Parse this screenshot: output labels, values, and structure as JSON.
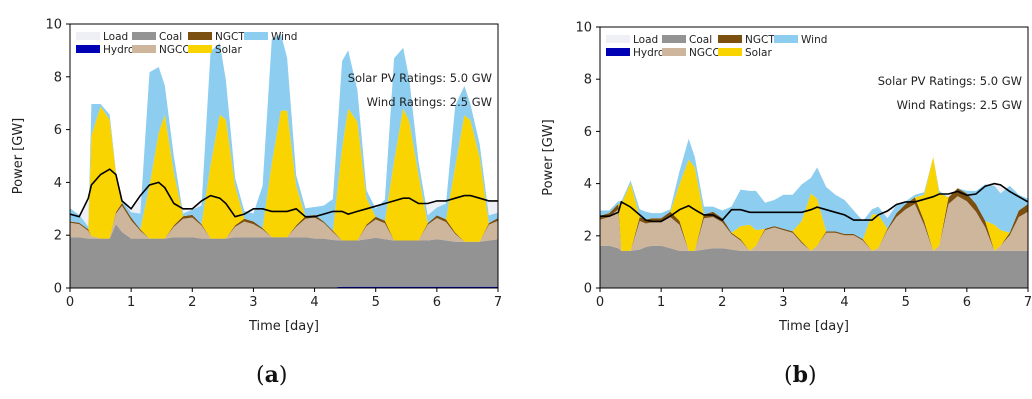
{
  "colors": {
    "Load": "#eef0f6",
    "Coal": "#939393",
    "NGCT": "#7a4f10",
    "Wind": "#8ccdf0",
    "Hydro": "#0000b5",
    "NGCC": "#cdb69c",
    "Solar": "#fad400",
    "load_line": "#000000"
  },
  "legend_entries": [
    "Load",
    "Coal",
    "NGCT",
    "Wind",
    "Hydro",
    "NGCC",
    "Solar"
  ],
  "chart_data": [
    {
      "type": "area",
      "panel_label": "a",
      "xlabel": "Time [day]",
      "ylabel": "Power [GW]",
      "xlim": [
        0,
        7
      ],
      "ylim": [
        0,
        10
      ],
      "xticks": [
        0,
        1,
        2,
        3,
        4,
        5,
        6,
        7
      ],
      "yticks": [
        0,
        2,
        4,
        6,
        8,
        10
      ],
      "annotations": [
        "Solar PV Ratings: 5.0 GW",
        "Wind Ratings: 2.5 GW"
      ],
      "legend_position": "top-left",
      "x": [
        0,
        0.15,
        0.3,
        0.35,
        0.5,
        0.65,
        0.75,
        0.85,
        1.0,
        1.15,
        1.3,
        1.45,
        1.55,
        1.7,
        1.85,
        2.0,
        2.15,
        2.3,
        2.45,
        2.55,
        2.7,
        2.85,
        3.0,
        3.15,
        3.3,
        3.45,
        3.55,
        3.7,
        3.85,
        4.0,
        4.15,
        4.3,
        4.45,
        4.55,
        4.7,
        4.85,
        5.0,
        5.15,
        5.3,
        5.45,
        5.55,
        5.7,
        5.85,
        6.0,
        6.15,
        6.3,
        6.45,
        6.55,
        6.7,
        6.85,
        7.0
      ],
      "series": [
        {
          "name": "Hydro",
          "values": [
            0.02,
            0.02,
            0.02,
            0.02,
            0.02,
            0.02,
            0.02,
            0.02,
            0.02,
            0.02,
            0.02,
            0.02,
            0.02,
            0.02,
            0.02,
            0.02,
            0.02,
            0.02,
            0.02,
            0.02,
            0.02,
            0.02,
            0.02,
            0.02,
            0.02,
            0.02,
            0.02,
            0.02,
            0.02,
            0.02,
            0.02,
            0.02,
            0.05,
            0.05,
            0.05,
            0.05,
            0.05,
            0.05,
            0.05,
            0.05,
            0.05,
            0.05,
            0.05,
            0.05,
            0.05,
            0.05,
            0.05,
            0.05,
            0.05,
            0.05,
            0.05
          ]
        },
        {
          "name": "Coal",
          "values": [
            1.9,
            1.9,
            1.85,
            1.85,
            1.85,
            1.85,
            2.4,
            2.1,
            1.85,
            1.85,
            1.85,
            1.85,
            1.85,
            1.9,
            1.9,
            1.9,
            1.85,
            1.85,
            1.85,
            1.85,
            1.9,
            1.9,
            1.9,
            1.9,
            1.9,
            1.9,
            1.9,
            1.9,
            1.9,
            1.85,
            1.85,
            1.8,
            1.75,
            1.75,
            1.75,
            1.8,
            1.85,
            1.8,
            1.75,
            1.75,
            1.75,
            1.75,
            1.75,
            1.8,
            1.75,
            1.7,
            1.7,
            1.7,
            1.7,
            1.75,
            1.8
          ]
        },
        {
          "name": "NGCC",
          "values": [
            0.55,
            0.5,
            0.3,
            0.1,
            0.0,
            0.0,
            0.4,
            1.0,
            0.7,
            0.3,
            0.0,
            0.0,
            0.0,
            0.4,
            0.7,
            0.75,
            0.5,
            0.0,
            0.0,
            0.0,
            0.4,
            0.6,
            0.5,
            0.3,
            0.0,
            0.0,
            0.0,
            0.4,
            0.7,
            0.8,
            0.6,
            0.3,
            0.0,
            0.0,
            0.0,
            0.5,
            0.7,
            0.6,
            0.0,
            0.0,
            0.0,
            0.0,
            0.6,
            0.8,
            0.7,
            0.3,
            0.0,
            0.0,
            0.0,
            0.6,
            0.7
          ]
        },
        {
          "name": "NGCT",
          "values": [
            0.05,
            0.05,
            0.05,
            0.0,
            0.0,
            0.0,
            0.05,
            0.1,
            0.1,
            0.05,
            0.0,
            0.0,
            0.0,
            0.05,
            0.1,
            0.1,
            0.05,
            0.0,
            0.0,
            0.0,
            0.05,
            0.1,
            0.1,
            0.05,
            0.0,
            0.0,
            0.0,
            0.05,
            0.1,
            0.1,
            0.05,
            0.05,
            0.0,
            0.0,
            0.0,
            0.05,
            0.1,
            0.1,
            0.0,
            0.0,
            0.0,
            0.0,
            0.05,
            0.1,
            0.1,
            0.05,
            0.0,
            0.0,
            0.0,
            0.05,
            0.1
          ]
        },
        {
          "name": "Solar",
          "values": [
            0,
            0,
            0,
            3.8,
            5.0,
            4.5,
            1.5,
            0,
            0,
            0,
            2.0,
            4.0,
            4.7,
            2.0,
            0,
            0,
            0,
            2.8,
            4.7,
            4.5,
            1.5,
            0,
            0,
            0,
            2.8,
            4.8,
            4.8,
            1.5,
            0,
            0,
            0,
            0,
            3.5,
            5.0,
            4.5,
            1.0,
            0,
            0,
            3.0,
            5.0,
            4.5,
            2.5,
            0,
            0,
            0,
            2.5,
            4.8,
            4.6,
            3.2,
            0,
            0
          ]
        },
        {
          "name": "Wind",
          "values": [
            0.5,
            0.3,
            0.1,
            1.2,
            0.1,
            0.2,
            0.05,
            0.1,
            0.2,
            0.6,
            4.3,
            2.5,
            1.1,
            0.6,
            0.1,
            0.2,
            0.7,
            4.3,
            2.7,
            1.5,
            0.3,
            0.3,
            0.3,
            1.6,
            4.7,
            2.9,
            2.0,
            0.4,
            0.3,
            0.3,
            0.6,
            1.2,
            3.3,
            2.2,
            1.2,
            0.3,
            0.3,
            0.8,
            3.9,
            2.3,
            1.6,
            0.5,
            0.3,
            0.3,
            0.6,
            2.3,
            1.1,
            0.6,
            0.5,
            0.3,
            0.2
          ]
        },
        {
          "name": "Load",
          "values": [
            2.8,
            2.7,
            3.4,
            3.9,
            4.3,
            4.5,
            4.3,
            3.3,
            3.0,
            3.5,
            3.9,
            4.0,
            3.8,
            3.2,
            3.0,
            3.0,
            3.3,
            3.5,
            3.4,
            3.2,
            2.7,
            2.8,
            3.0,
            3.0,
            2.9,
            2.9,
            2.9,
            3.0,
            2.7,
            2.7,
            2.8,
            2.9,
            2.9,
            2.8,
            2.9,
            3.0,
            3.1,
            3.2,
            3.3,
            3.4,
            3.4,
            3.2,
            3.2,
            3.3,
            3.3,
            3.4,
            3.5,
            3.5,
            3.4,
            3.3,
            3.3
          ]
        }
      ]
    },
    {
      "type": "area",
      "panel_label": "b",
      "xlabel": "Time [day]",
      "ylabel": "Power [GW]",
      "xlim": [
        0,
        7
      ],
      "ylim": [
        0,
        10
      ],
      "xticks": [
        0,
        1,
        2,
        3,
        4,
        5,
        6,
        7
      ],
      "yticks": [
        0,
        2,
        4,
        6,
        8,
        10
      ],
      "annotations": [
        "Solar PV Ratings: 5.0 GW",
        "Wind Ratings: 2.5 GW"
      ],
      "legend_position": "top-left",
      "x": [
        0,
        0.15,
        0.3,
        0.35,
        0.5,
        0.65,
        0.75,
        0.85,
        1.0,
        1.15,
        1.3,
        1.45,
        1.55,
        1.7,
        1.85,
        2.0,
        2.15,
        2.3,
        2.45,
        2.55,
        2.7,
        2.85,
        3.0,
        3.15,
        3.3,
        3.45,
        3.55,
        3.7,
        3.85,
        4.0,
        4.15,
        4.3,
        4.45,
        4.55,
        4.7,
        4.85,
        5.0,
        5.15,
        5.3,
        5.45,
        5.55,
        5.7,
        5.85,
        6.0,
        6.15,
        6.3,
        6.45,
        6.55,
        6.7,
        6.85,
        7.0
      ],
      "series": [
        {
          "name": "Hydro",
          "values": [
            0.02,
            0.02,
            0.02,
            0.02,
            0.02,
            0.02,
            0.02,
            0.02,
            0.02,
            0.02,
            0.02,
            0.02,
            0.02,
            0.02,
            0.02,
            0.02,
            0.02,
            0.02,
            0.02,
            0.02,
            0.02,
            0.02,
            0.02,
            0.02,
            0.02,
            0.02,
            0.02,
            0.02,
            0.02,
            0.02,
            0.02,
            0.02,
            0.02,
            0.02,
            0.02,
            0.02,
            0.02,
            0.02,
            0.02,
            0.02,
            0.02,
            0.02,
            0.02,
            0.02,
            0.02,
            0.02,
            0.02,
            0.02,
            0.02,
            0.02,
            0.02
          ]
        },
        {
          "name": "Coal",
          "values": [
            1.6,
            1.6,
            1.5,
            1.4,
            1.4,
            1.45,
            1.55,
            1.6,
            1.6,
            1.5,
            1.4,
            1.4,
            1.4,
            1.45,
            1.5,
            1.5,
            1.45,
            1.4,
            1.4,
            1.4,
            1.4,
            1.4,
            1.4,
            1.4,
            1.4,
            1.4,
            1.4,
            1.4,
            1.4,
            1.4,
            1.4,
            1.4,
            1.4,
            1.4,
            1.4,
            1.4,
            1.4,
            1.4,
            1.4,
            1.4,
            1.4,
            1.4,
            1.4,
            1.4,
            1.4,
            1.4,
            1.4,
            1.4,
            1.4,
            1.4,
            1.4
          ]
        },
        {
          "name": "NGCC",
          "values": [
            1.0,
            1.1,
            1.5,
            0.0,
            0.0,
            1.1,
            0.9,
            0.9,
            0.9,
            1.2,
            1.0,
            0.0,
            0.0,
            1.2,
            1.2,
            1.0,
            0.6,
            0.4,
            0.0,
            0.2,
            0.8,
            0.9,
            0.8,
            0.7,
            0.3,
            0.0,
            0.2,
            0.7,
            0.7,
            0.6,
            0.6,
            0.4,
            0.0,
            0.1,
            0.8,
            1.3,
            1.6,
            1.8,
            1.0,
            0.0,
            0.2,
            1.8,
            2.1,
            1.9,
            1.5,
            0.9,
            0.0,
            0.2,
            0.6,
            1.3,
            1.5
          ]
        },
        {
          "name": "NGCT",
          "values": [
            0.15,
            0.15,
            0.2,
            0.0,
            0.0,
            0.15,
            0.15,
            0.15,
            0.15,
            0.2,
            0.15,
            0.0,
            0.0,
            0.15,
            0.2,
            0.15,
            0.05,
            0.05,
            0.0,
            0.0,
            0.05,
            0.05,
            0.05,
            0.05,
            0.05,
            0.0,
            0.0,
            0.05,
            0.05,
            0.05,
            0.05,
            0.05,
            0.0,
            0.0,
            0.05,
            0.15,
            0.2,
            0.25,
            0.15,
            0.0,
            0.0,
            0.25,
            0.3,
            0.3,
            0.3,
            0.25,
            0.0,
            0.0,
            0.1,
            0.25,
            0.3
          ]
        },
        {
          "name": "Solar",
          "values": [
            0,
            0,
            0,
            1.8,
            2.6,
            0,
            0,
            0,
            0,
            0,
            1.4,
            3.5,
            3.2,
            0,
            0,
            0,
            0,
            0.5,
            1.0,
            0.6,
            0,
            0,
            0,
            0,
            0.8,
            2.2,
            1.8,
            0,
            0,
            0,
            0,
            0,
            1.4,
            1.3,
            0,
            0,
            0,
            0,
            1.0,
            3.6,
            2.0,
            0,
            0,
            0,
            0,
            0,
            1.0,
            0.6,
            0,
            0,
            0
          ]
        },
        {
          "name": "Wind",
          "values": [
            0.2,
            0.1,
            0.1,
            0.1,
            0.1,
            0.3,
            0.3,
            0.2,
            0.2,
            0.1,
            0.5,
            0.8,
            0.4,
            0.3,
            0.2,
            0.3,
            1.0,
            1.4,
            1.3,
            1.5,
            1.0,
            1.0,
            1.3,
            1.4,
            1.4,
            0.6,
            1.2,
            1.7,
            1.4,
            1.3,
            0.9,
            0.7,
            0.2,
            0.3,
            0.4,
            0.3,
            0.1,
            0.1,
            0.1,
            0.0,
            0.1,
            0.0,
            0.0,
            0.1,
            0.5,
            1.4,
            1.5,
            1.4,
            1.8,
            0.6,
            0.2
          ]
        },
        {
          "name": "Load",
          "values": [
            2.75,
            2.75,
            2.9,
            3.3,
            3.1,
            2.8,
            2.6,
            2.55,
            2.55,
            2.75,
            3.0,
            3.15,
            3.0,
            2.8,
            2.8,
            2.6,
            3.0,
            3.0,
            2.9,
            2.9,
            2.9,
            2.9,
            2.9,
            2.9,
            2.9,
            3.0,
            3.1,
            3.0,
            2.9,
            2.8,
            2.6,
            2.6,
            2.6,
            2.8,
            2.95,
            3.2,
            3.3,
            3.3,
            3.4,
            3.5,
            3.6,
            3.6,
            3.7,
            3.55,
            3.6,
            3.9,
            4.0,
            3.95,
            3.7,
            3.5,
            3.3
          ]
        }
      ]
    }
  ]
}
